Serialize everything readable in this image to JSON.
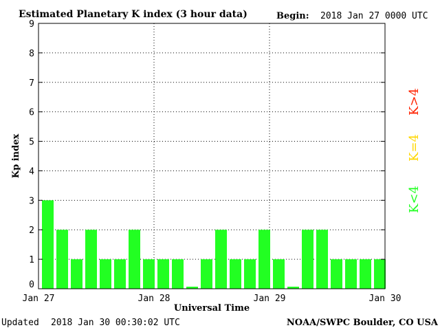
{
  "header": {
    "title": "Estimated Planetary K index (3 hour data)",
    "begin_label": "Begin:",
    "begin_value": "2018 Jan 27 0000 UTC"
  },
  "footer": {
    "updated_label": "Updated",
    "updated_value": "2018 Jan 30 00:30:02 UTC",
    "credit": "NOAA/SWPC Boulder, CO USA"
  },
  "legend": {
    "high": "K>4",
    "equal": "K=4",
    "low": "K<4"
  },
  "colors": {
    "low": "#22ff22",
    "equal": "#ffd700",
    "high": "#ff2200"
  },
  "chart_data": {
    "type": "bar",
    "xlabel": "Universal Time",
    "ylabel": "Kp index",
    "ylim": [
      0,
      9
    ],
    "yticks": [
      0,
      1,
      2,
      3,
      4,
      5,
      6,
      7,
      8,
      9
    ],
    "xticks": [
      "Jan 27",
      "Jan 28",
      "Jan 29",
      "Jan 30"
    ],
    "grid": true,
    "interval_hours": 3,
    "values": [
      3,
      2,
      1,
      2,
      1,
      1,
      2,
      1,
      1,
      1,
      0,
      1,
      2,
      1,
      1,
      2,
      1,
      0,
      2,
      2,
      1,
      1,
      1,
      1
    ]
  }
}
